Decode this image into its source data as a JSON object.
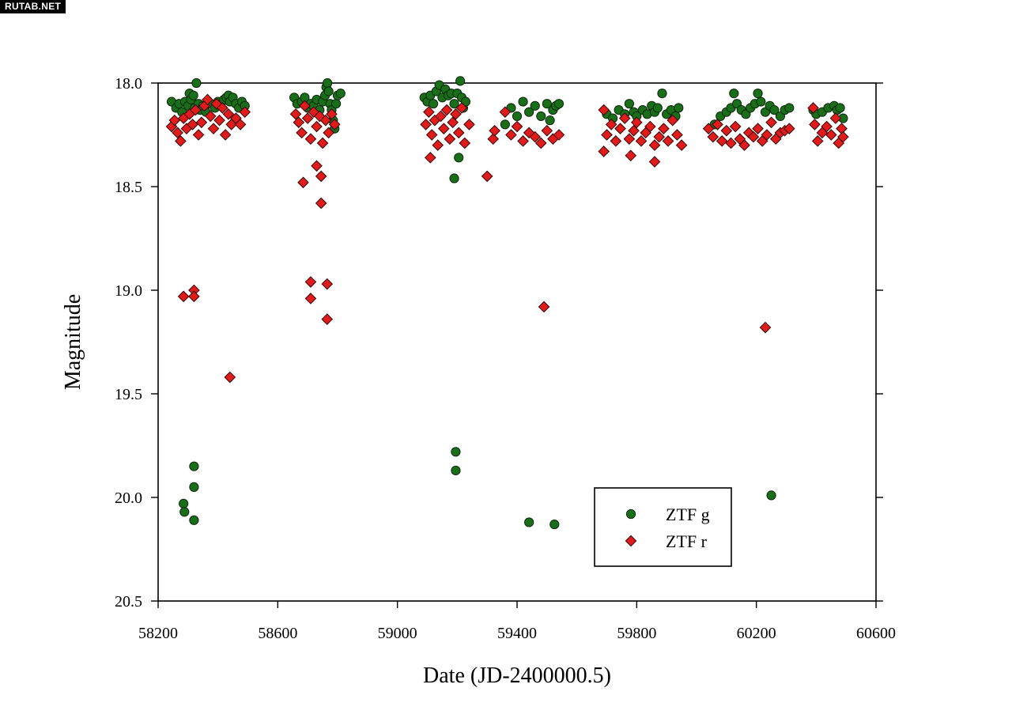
{
  "watermark": "RUTAB.NET",
  "chart_data": {
    "type": "scatter",
    "xlabel": "Date (JD-2400000.5)",
    "ylabel": "Magnitude",
    "xlim": [
      58200,
      60600
    ],
    "ylim": [
      18.0,
      20.5
    ],
    "y_inverted": true,
    "xticks": [
      "58200",
      "58600",
      "59000",
      "59400",
      "59800",
      "60200",
      "60600"
    ],
    "yticks": [
      "18.0",
      "18.5",
      "19.0",
      "19.5",
      "20.0",
      "20.5"
    ],
    "legend_position": "lower-right",
    "grid": false,
    "series": [
      {
        "name": "ZTF g",
        "marker": "circle",
        "color": "#1a6e1a",
        "points": [
          [
            58245,
            18.09
          ],
          [
            58260,
            18.12
          ],
          [
            58270,
            18.1
          ],
          [
            58280,
            18.14
          ],
          [
            58290,
            18.09
          ],
          [
            58300,
            18.11
          ],
          [
            58305,
            18.05
          ],
          [
            58310,
            18.08
          ],
          [
            58318,
            18.06
          ],
          [
            58322,
            18.12
          ],
          [
            58328,
            18.0
          ],
          [
            58335,
            18.1
          ],
          [
            58340,
            18.13
          ],
          [
            58350,
            18.11
          ],
          [
            58360,
            18.14
          ],
          [
            58375,
            18.1
          ],
          [
            58390,
            18.12
          ],
          [
            58400,
            18.09
          ],
          [
            58410,
            18.1
          ],
          [
            58420,
            18.08
          ],
          [
            58428,
            18.07
          ],
          [
            58435,
            18.06
          ],
          [
            58440,
            18.09
          ],
          [
            58450,
            18.07
          ],
          [
            58460,
            18.1
          ],
          [
            58470,
            18.12
          ],
          [
            58480,
            18.09
          ],
          [
            58490,
            18.11
          ],
          [
            58655,
            18.07
          ],
          [
            58665,
            18.1
          ],
          [
            58680,
            18.09
          ],
          [
            58690,
            18.07
          ],
          [
            58700,
            18.12
          ],
          [
            58710,
            18.1
          ],
          [
            58720,
            18.11
          ],
          [
            58730,
            18.08
          ],
          [
            58740,
            18.13
          ],
          [
            58750,
            18.09
          ],
          [
            58758,
            18.06
          ],
          [
            58762,
            18.02
          ],
          [
            58766,
            18.0
          ],
          [
            58770,
            18.04
          ],
          [
            58775,
            18.1
          ],
          [
            58780,
            18.13
          ],
          [
            58785,
            18.18
          ],
          [
            58790,
            18.22
          ],
          [
            58795,
            18.1
          ],
          [
            58800,
            18.06
          ],
          [
            58810,
            18.05
          ],
          [
            59090,
            18.07
          ],
          [
            59100,
            18.09
          ],
          [
            59110,
            18.06
          ],
          [
            59120,
            18.1
          ],
          [
            59130,
            18.04
          ],
          [
            59140,
            18.01
          ],
          [
            59150,
            18.07
          ],
          [
            59160,
            18.03
          ],
          [
            59170,
            18.06
          ],
          [
            59180,
            18.05
          ],
          [
            59190,
            18.1
          ],
          [
            59200,
            18.05
          ],
          [
            59210,
            17.99
          ],
          [
            59215,
            18.07
          ],
          [
            59220,
            18.12
          ],
          [
            59228,
            18.09
          ],
          [
            59205,
            18.36
          ],
          [
            59190,
            18.46
          ],
          [
            59360,
            18.2
          ],
          [
            59380,
            18.12
          ],
          [
            59400,
            18.16
          ],
          [
            59420,
            18.09
          ],
          [
            59440,
            18.14
          ],
          [
            59460,
            18.11
          ],
          [
            59480,
            18.16
          ],
          [
            59500,
            18.1
          ],
          [
            59510,
            18.18
          ],
          [
            59520,
            18.13
          ],
          [
            59530,
            18.11
          ],
          [
            59540,
            18.1
          ],
          [
            59700,
            18.15
          ],
          [
            59720,
            18.17
          ],
          [
            59740,
            18.13
          ],
          [
            59760,
            18.15
          ],
          [
            59775,
            18.1
          ],
          [
            59790,
            18.14
          ],
          [
            59800,
            18.16
          ],
          [
            59820,
            18.13
          ],
          [
            59835,
            18.15
          ],
          [
            59850,
            18.11
          ],
          [
            59860,
            18.14
          ],
          [
            59870,
            18.12
          ],
          [
            59885,
            18.05
          ],
          [
            59900,
            18.15
          ],
          [
            59915,
            18.13
          ],
          [
            59930,
            18.16
          ],
          [
            59940,
            18.12
          ],
          [
            60060,
            18.2
          ],
          [
            60080,
            18.16
          ],
          [
            60100,
            18.14
          ],
          [
            60115,
            18.12
          ],
          [
            60125,
            18.05
          ],
          [
            60135,
            18.1
          ],
          [
            60150,
            18.13
          ],
          [
            60165,
            18.15
          ],
          [
            60180,
            18.12
          ],
          [
            60195,
            18.1
          ],
          [
            60205,
            18.05
          ],
          [
            60215,
            18.09
          ],
          [
            60230,
            18.14
          ],
          [
            60245,
            18.11
          ],
          [
            60260,
            18.13
          ],
          [
            60280,
            18.16
          ],
          [
            60295,
            18.13
          ],
          [
            60310,
            18.12
          ],
          [
            60390,
            18.13
          ],
          [
            60400,
            18.15
          ],
          [
            60420,
            18.14
          ],
          [
            60440,
            18.12
          ],
          [
            60460,
            18.11
          ],
          [
            60470,
            18.13
          ],
          [
            60480,
            18.12
          ],
          [
            60490,
            18.17
          ],
          [
            58285,
            20.03
          ],
          [
            58288,
            20.07
          ],
          [
            58320,
            19.85
          ],
          [
            58320,
            19.95
          ],
          [
            58320,
            20.11
          ],
          [
            59195,
            19.78
          ],
          [
            59195,
            19.87
          ],
          [
            59440,
            20.12
          ],
          [
            59525,
            20.13
          ],
          [
            60250,
            19.99
          ]
        ]
      },
      {
        "name": "ZTF r",
        "marker": "diamond",
        "color": "#e01b1b",
        "points": [
          [
            58245,
            18.21
          ],
          [
            58255,
            18.18
          ],
          [
            58265,
            18.24
          ],
          [
            58275,
            18.28
          ],
          [
            58285,
            18.17
          ],
          [
            58295,
            18.22
          ],
          [
            58305,
            18.15
          ],
          [
            58315,
            18.2
          ],
          [
            58325,
            18.13
          ],
          [
            58335,
            18.25
          ],
          [
            58345,
            18.19
          ],
          [
            58355,
            18.11
          ],
          [
            58365,
            18.08
          ],
          [
            58375,
            18.16
          ],
          [
            58385,
            18.22
          ],
          [
            58395,
            18.1
          ],
          [
            58405,
            18.18
          ],
          [
            58415,
            18.12
          ],
          [
            58425,
            18.25
          ],
          [
            58435,
            18.15
          ],
          [
            58445,
            18.2
          ],
          [
            58460,
            18.17
          ],
          [
            58475,
            18.2
          ],
          [
            58490,
            18.14
          ],
          [
            58660,
            18.15
          ],
          [
            58670,
            18.19
          ],
          [
            58680,
            18.24
          ],
          [
            58690,
            18.11
          ],
          [
            58700,
            18.17
          ],
          [
            58710,
            18.27
          ],
          [
            58720,
            18.14
          ],
          [
            58730,
            18.21
          ],
          [
            58740,
            18.16
          ],
          [
            58750,
            18.29
          ],
          [
            58760,
            18.18
          ],
          [
            58770,
            18.24
          ],
          [
            58780,
            18.15
          ],
          [
            58790,
            18.2
          ],
          [
            58730,
            18.4
          ],
          [
            58745,
            18.45
          ],
          [
            58685,
            18.48
          ],
          [
            58745,
            18.58
          ],
          [
            59095,
            18.2
          ],
          [
            59105,
            18.14
          ],
          [
            59115,
            18.25
          ],
          [
            59125,
            18.18
          ],
          [
            59135,
            18.3
          ],
          [
            59145,
            18.16
          ],
          [
            59155,
            18.22
          ],
          [
            59165,
            18.13
          ],
          [
            59175,
            18.27
          ],
          [
            59185,
            18.19
          ],
          [
            59195,
            18.15
          ],
          [
            59205,
            18.24
          ],
          [
            59215,
            18.12
          ],
          [
            59225,
            18.29
          ],
          [
            59110,
            18.36
          ],
          [
            59240,
            18.2
          ],
          [
            59300,
            18.45
          ],
          [
            59320,
            18.27
          ],
          [
            59325,
            18.23
          ],
          [
            59360,
            18.14
          ],
          [
            59380,
            18.25
          ],
          [
            59400,
            18.21
          ],
          [
            59420,
            18.28
          ],
          [
            59440,
            18.24
          ],
          [
            59460,
            18.26
          ],
          [
            59480,
            18.29
          ],
          [
            59500,
            18.23
          ],
          [
            59520,
            18.27
          ],
          [
            59540,
            18.25
          ],
          [
            59690,
            18.13
          ],
          [
            59700,
            18.25
          ],
          [
            59715,
            18.2
          ],
          [
            59730,
            18.28
          ],
          [
            59745,
            18.22
          ],
          [
            59760,
            18.17
          ],
          [
            59775,
            18.27
          ],
          [
            59790,
            18.23
          ],
          [
            59800,
            18.19
          ],
          [
            59815,
            18.28
          ],
          [
            59830,
            18.24
          ],
          [
            59845,
            18.21
          ],
          [
            59860,
            18.3
          ],
          [
            59875,
            18.26
          ],
          [
            59890,
            18.22
          ],
          [
            59905,
            18.28
          ],
          [
            59920,
            18.18
          ],
          [
            59935,
            18.25
          ],
          [
            59950,
            18.3
          ],
          [
            59690,
            18.33
          ],
          [
            59780,
            18.35
          ],
          [
            59860,
            18.38
          ],
          [
            60040,
            18.22
          ],
          [
            60055,
            18.26
          ],
          [
            60070,
            18.2
          ],
          [
            60085,
            18.28
          ],
          [
            60100,
            18.23
          ],
          [
            60115,
            18.29
          ],
          [
            60130,
            18.21
          ],
          [
            60145,
            18.27
          ],
          [
            60160,
            18.3
          ],
          [
            60175,
            18.24
          ],
          [
            60190,
            18.26
          ],
          [
            60205,
            18.22
          ],
          [
            60220,
            18.28
          ],
          [
            60235,
            18.25
          ],
          [
            60250,
            18.19
          ],
          [
            60265,
            18.27
          ],
          [
            60280,
            18.24
          ],
          [
            60295,
            18.23
          ],
          [
            60310,
            18.22
          ],
          [
            60390,
            18.12
          ],
          [
            60395,
            18.2
          ],
          [
            60405,
            18.28
          ],
          [
            60420,
            18.24
          ],
          [
            60435,
            18.21
          ],
          [
            60450,
            18.25
          ],
          [
            60465,
            18.17
          ],
          [
            60475,
            18.29
          ],
          [
            60485,
            18.22
          ],
          [
            60490,
            18.26
          ],
          [
            58285,
            19.03
          ],
          [
            58320,
            19.0
          ],
          [
            58320,
            19.03
          ],
          [
            58440,
            19.42
          ],
          [
            58710,
            18.96
          ],
          [
            58710,
            19.04
          ],
          [
            58765,
            18.97
          ],
          [
            58765,
            19.14
          ],
          [
            59490,
            19.08
          ],
          [
            60230,
            19.18
          ]
        ]
      }
    ]
  }
}
